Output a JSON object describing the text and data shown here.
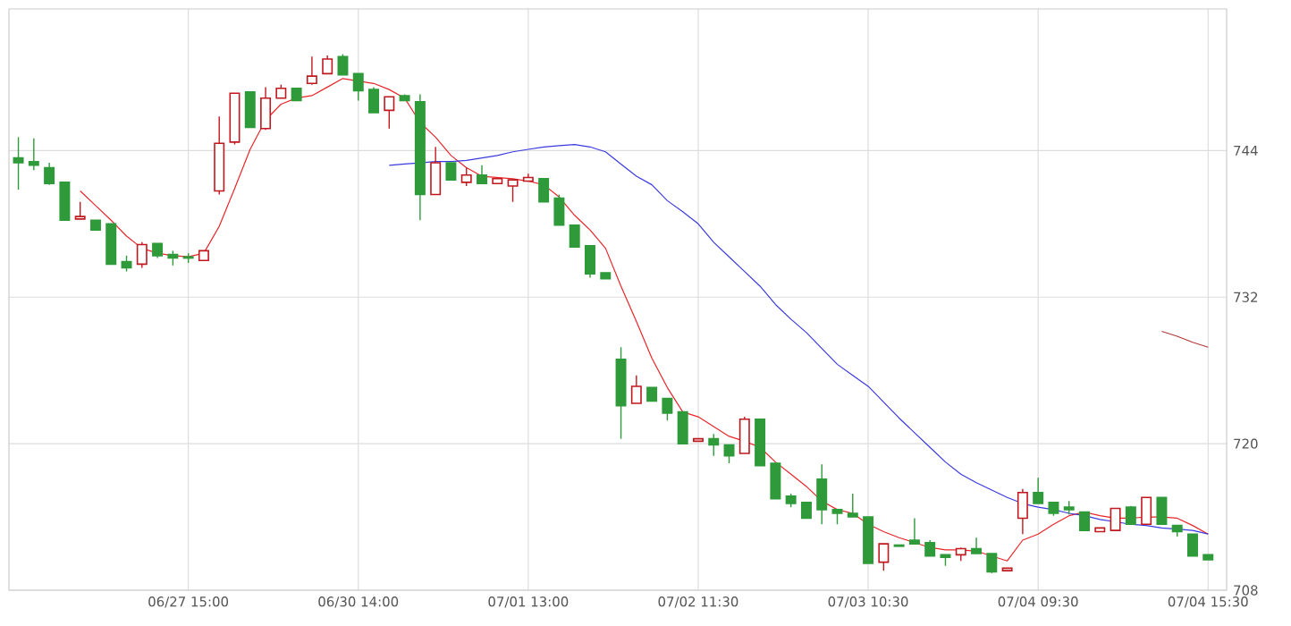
{
  "chart_data": {
    "type": "candlestick",
    "categories": [
      null,
      null,
      null,
      null,
      null,
      null,
      null,
      null,
      null,
      null,
      null,
      "06/27 15:00",
      null,
      null,
      null,
      null,
      null,
      null,
      null,
      null,
      null,
      null,
      "06/30 14:00",
      null,
      null,
      null,
      null,
      null,
      null,
      null,
      null,
      null,
      null,
      "07/01 13:00",
      null,
      null,
      null,
      null,
      null,
      null,
      null,
      null,
      null,
      null,
      "07/02 11:30",
      null,
      null,
      null,
      null,
      null,
      null,
      null,
      null,
      null,
      null,
      "07/03 10:30",
      null,
      null,
      null,
      null,
      null,
      null,
      null,
      null,
      null,
      null,
      "07/04 09:30",
      null,
      null,
      null,
      null,
      null,
      null,
      null,
      null,
      null,
      null,
      "07/04 15:30"
    ],
    "ohlc": [
      [
        743.4,
        745.1,
        740.8,
        743.0
      ],
      [
        743.1,
        745.0,
        742.4,
        742.8
      ],
      [
        742.6,
        743.0,
        741.2,
        741.3
      ],
      [
        741.4,
        741.4,
        738.3,
        738.3
      ],
      [
        738.4,
        739.8,
        738.4,
        738.6
      ],
      [
        738.3,
        738.3,
        737.5,
        737.5
      ],
      [
        738.0,
        738.0,
        734.7,
        734.7
      ],
      [
        734.9,
        735.4,
        734.1,
        734.4
      ],
      [
        734.7,
        736.5,
        734.4,
        736.3
      ],
      [
        736.4,
        736.4,
        735.2,
        735.4
      ],
      [
        735.5,
        735.8,
        734.6,
        735.2
      ],
      [
        735.3,
        735.6,
        734.8,
        735.2
      ],
      [
        735.0,
        735.8,
        735.0,
        735.8
      ],
      [
        740.7,
        746.8,
        740.4,
        744.6
      ],
      [
        744.7,
        748.7,
        744.5,
        748.7
      ],
      [
        748.8,
        748.8,
        745.9,
        745.9
      ],
      [
        745.8,
        749.2,
        745.7,
        748.3
      ],
      [
        748.3,
        749.4,
        748.3,
        749.1
      ],
      [
        749.1,
        749.1,
        748.1,
        748.1
      ],
      [
        749.5,
        751.7,
        749.4,
        750.1
      ],
      [
        750.3,
        751.8,
        750.3,
        751.5
      ],
      [
        751.7,
        751.9,
        750.2,
        750.2
      ],
      [
        750.3,
        750.3,
        748.1,
        748.9
      ],
      [
        749.0,
        749.2,
        747.1,
        747.1
      ],
      [
        747.3,
        748.4,
        745.8,
        748.4
      ],
      [
        748.5,
        748.6,
        748.1,
        748.1
      ],
      [
        748.0,
        748.6,
        738.3,
        740.4
      ],
      [
        740.4,
        744.3,
        740.4,
        743.0
      ],
      [
        743.0,
        743.0,
        741.6,
        741.6
      ],
      [
        741.4,
        742.6,
        741.1,
        742.0
      ],
      [
        742.0,
        742.8,
        741.3,
        741.3
      ],
      [
        741.3,
        741.7,
        741.3,
        741.7
      ],
      [
        741.1,
        741.6,
        739.8,
        741.6
      ],
      [
        741.5,
        742.1,
        741.5,
        741.8
      ],
      [
        741.7,
        741.7,
        739.8,
        739.8
      ],
      [
        740.1,
        740.4,
        737.9,
        737.9
      ],
      [
        737.9,
        737.9,
        736.1,
        736.1
      ],
      [
        736.2,
        736.2,
        733.6,
        733.9
      ],
      [
        734.0,
        734.0,
        733.5,
        733.5
      ],
      [
        726.9,
        727.9,
        720.4,
        723.1
      ],
      [
        723.3,
        725.6,
        723.3,
        724.7
      ],
      [
        724.6,
        724.6,
        723.5,
        723.5
      ],
      [
        723.7,
        723.7,
        721.9,
        722.5
      ],
      [
        722.6,
        722.6,
        720.0,
        720.0
      ],
      [
        720.2,
        720.4,
        720.2,
        720.4
      ],
      [
        720.4,
        720.8,
        719.0,
        719.9
      ],
      [
        719.9,
        719.9,
        718.4,
        719.0
      ],
      [
        719.2,
        722.2,
        719.2,
        722.0
      ],
      [
        722.0,
        722.0,
        718.2,
        718.2
      ],
      [
        718.4,
        718.4,
        715.5,
        715.5
      ],
      [
        715.7,
        715.9,
        714.8,
        715.1
      ],
      [
        715.2,
        715.2,
        713.9,
        713.9
      ],
      [
        717.1,
        718.3,
        713.4,
        714.6
      ],
      [
        714.6,
        714.6,
        713.4,
        714.3
      ],
      [
        714.3,
        715.9,
        714.0,
        714.0
      ],
      [
        714.0,
        714.0,
        710.2,
        710.2
      ],
      [
        710.3,
        711.8,
        709.6,
        711.8
      ],
      [
        711.7,
        711.7,
        711.6,
        711.6
      ],
      [
        712.1,
        713.9,
        711.8,
        711.8
      ],
      [
        711.9,
        712.1,
        710.8,
        710.8
      ],
      [
        710.9,
        710.9,
        710.0,
        710.7
      ],
      [
        710.9,
        711.5,
        710.4,
        711.4
      ],
      [
        711.4,
        712.3,
        711.0,
        711.0
      ],
      [
        711.0,
        711.0,
        709.4,
        709.5
      ],
      [
        709.6,
        709.8,
        709.6,
        709.8
      ],
      [
        713.9,
        716.3,
        712.6,
        716.0
      ],
      [
        716.0,
        717.2,
        715.1,
        715.1
      ],
      [
        715.2,
        715.2,
        714.1,
        714.3
      ],
      [
        714.8,
        715.3,
        714.2,
        714.6
      ],
      [
        714.4,
        714.4,
        712.9,
        712.9
      ],
      [
        712.8,
        713.1,
        712.8,
        713.1
      ],
      [
        712.9,
        714.7,
        712.9,
        714.7
      ],
      [
        714.8,
        714.9,
        713.4,
        713.4
      ],
      [
        713.4,
        715.6,
        713.4,
        715.6
      ],
      [
        715.6,
        715.6,
        713.4,
        713.4
      ],
      [
        713.3,
        713.3,
        712.4,
        712.8
      ],
      [
        712.6,
        712.6,
        710.8,
        710.8
      ],
      [
        710.9,
        710.9,
        710.5,
        710.5
      ]
    ],
    "colors": [
      "#2e9a3a",
      "#2e9a3a",
      "#2e9a3a",
      "#2e9a3a",
      "#c0181f",
      "#2e9a3a",
      "#2e9a3a",
      "#2e9a3a",
      "#c0181f",
      "#2e9a3a",
      "#2e9a3a",
      "#2e9a3a",
      "#c0181f",
      "#c0181f",
      "#c0181f",
      "#2e9a3a",
      "#c0181f",
      "#c0181f",
      "#2e9a3a",
      "#c0181f",
      "#c0181f",
      "#2e9a3a",
      "#2e9a3a",
      "#2e9a3a",
      "#c0181f",
      "#2e9a3a",
      "#2e9a3a",
      "#c0181f",
      "#2e9a3a",
      "#c0181f",
      "#2e9a3a",
      "#c0181f",
      "#c0181f",
      "#c0181f",
      "#2e9a3a",
      "#2e9a3a",
      "#2e9a3a",
      "#2e9a3a",
      "#2e9a3a",
      "#2e9a3a",
      "#c0181f",
      "#2e9a3a",
      "#2e9a3a",
      "#2e9a3a",
      "#c0181f",
      "#2e9a3a",
      "#2e9a3a",
      "#c0181f",
      "#2e9a3a",
      "#2e9a3a",
      "#2e9a3a",
      "#2e9a3a",
      "#2e9a3a",
      "#2e9a3a",
      "#2e9a3a",
      "#2e9a3a",
      "#c0181f",
      "#2e9a3a",
      "#2e9a3a",
      "#2e9a3a",
      "#2e9a3a",
      "#c0181f",
      "#2e9a3a",
      "#2e9a3a",
      "#c0181f",
      "#c0181f",
      "#2e9a3a",
      "#2e9a3a",
      "#2e9a3a",
      "#2e9a3a",
      "#c0181f",
      "#c0181f",
      "#2e9a3a",
      "#c0181f",
      "#2e9a3a",
      "#2e9a3a",
      "#2e9a3a",
      "#2e9a3a"
    ],
    "series": [
      {
        "type": "line",
        "color": "#e8262a",
        "values": [
          null,
          null,
          null,
          null,
          740.7,
          739.5,
          738.3,
          737.0,
          736.0,
          735.6,
          735.4,
          735.3,
          735.6,
          737.8,
          740.9,
          744.1,
          746.5,
          747.8,
          748.3,
          748.5,
          749.2,
          749.9,
          749.7,
          749.5,
          749.0,
          748.3,
          746.3,
          745.1,
          743.6,
          742.6,
          741.9,
          741.8,
          741.7,
          741.5,
          741.2,
          740.2,
          738.7,
          737.5,
          736.0,
          732.9,
          730.0,
          727.0,
          724.6,
          722.6,
          722.2,
          721.4,
          720.6,
          720.2,
          719.7,
          718.5,
          717.5,
          716.5,
          715.3,
          714.6,
          714.3,
          713.4,
          712.8,
          712.3,
          711.9,
          711.5,
          711.3,
          711.3,
          711.2,
          710.8,
          710.4,
          712.1,
          712.6,
          713.4,
          714.1,
          714.4,
          714.1,
          713.9,
          713.9,
          714.0,
          714.0,
          713.9,
          713.3,
          712.6
        ]
      },
      {
        "type": "line",
        "color": "#3a3ae0",
        "values": [
          null,
          null,
          null,
          null,
          null,
          null,
          null,
          null,
          null,
          null,
          null,
          null,
          null,
          null,
          null,
          null,
          null,
          null,
          null,
          null,
          null,
          null,
          null,
          null,
          742.8,
          742.9,
          743.0,
          743.1,
          743.1,
          743.2,
          743.4,
          743.6,
          743.9,
          744.1,
          744.3,
          744.4,
          744.5,
          744.3,
          743.9,
          742.9,
          741.9,
          741.2,
          739.9,
          739.0,
          738.0,
          736.5,
          735.3,
          734.1,
          732.9,
          731.4,
          730.2,
          729.1,
          727.8,
          726.5,
          725.6,
          724.7,
          723.4,
          722.1,
          720.9,
          719.7,
          718.5,
          717.5,
          716.8,
          716.2,
          715.6,
          715.1,
          714.8,
          714.6,
          714.3,
          714.1,
          713.8,
          713.6,
          713.4,
          713.3,
          713.1,
          713.0,
          712.9,
          712.6
        ]
      },
      {
        "type": "line",
        "color": "#b03a3a",
        "values": [
          null,
          null,
          null,
          null,
          null,
          null,
          null,
          null,
          null,
          null,
          null,
          null,
          null,
          null,
          null,
          null,
          null,
          null,
          null,
          null,
          null,
          null,
          null,
          null,
          null,
          null,
          null,
          null,
          null,
          null,
          null,
          null,
          null,
          null,
          null,
          null,
          null,
          null,
          null,
          null,
          null,
          null,
          null,
          null,
          null,
          null,
          null,
          null,
          null,
          null,
          null,
          null,
          null,
          null,
          null,
          null,
          null,
          null,
          null,
          null,
          null,
          null,
          null,
          null,
          null,
          null,
          null,
          null,
          null,
          null,
          null,
          null,
          null,
          null,
          729.2,
          728.8,
          728.3,
          727.9
        ]
      }
    ],
    "ylim": [
      708,
      755.6
    ],
    "yticks": [
      708,
      720,
      732,
      744
    ],
    "grid": true
  }
}
